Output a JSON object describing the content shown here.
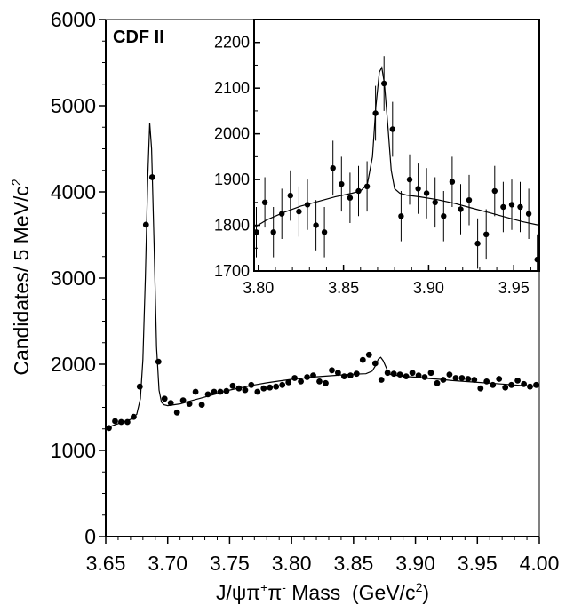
{
  "chart_data": [
    {
      "type": "scatter",
      "role": "main",
      "xlabel_parts": {
        "base": "J/ψπ",
        "sup1": "+",
        "mid": "π",
        "sup2": "-",
        "rest": " Mass  (GeV/c",
        "sup3": "2",
        "end": ")"
      },
      "ylabel_parts": {
        "base": "Candidates/ 5 MeV/c",
        "sup": "2"
      },
      "xlim": [
        3.65,
        4.0
      ],
      "ylim": [
        0,
        6000
      ],
      "x_ticks": [
        "3.65",
        "3.70",
        "3.75",
        "3.80",
        "3.85",
        "3.90",
        "3.95",
        "4.00"
      ],
      "y_ticks": [
        "0",
        "1000",
        "2000",
        "3000",
        "4000",
        "5000",
        "6000"
      ],
      "tag": "CDF II",
      "points": {
        "x": [
          3.6525,
          3.6575,
          3.6625,
          3.6675,
          3.6725,
          3.6775,
          3.6825,
          3.6875,
          3.6925,
          3.6975,
          3.7025,
          3.7075,
          3.7125,
          3.7175,
          3.7225,
          3.7275,
          3.7325,
          3.7375,
          3.7425,
          3.7475,
          3.7525,
          3.7575,
          3.7625,
          3.7675,
          3.7725,
          3.7775,
          3.7825,
          3.7875,
          3.7925,
          3.7975,
          3.8025,
          3.8075,
          3.8125,
          3.8175,
          3.8225,
          3.8275,
          3.8325,
          3.8375,
          3.8425,
          3.8475,
          3.8525,
          3.8575,
          3.8625,
          3.8675,
          3.8725,
          3.8775,
          3.8825,
          3.8875,
          3.8925,
          3.8975,
          3.9025,
          3.9075,
          3.9125,
          3.9175,
          3.9225,
          3.9275,
          3.9325,
          3.9375,
          3.9425,
          3.9475,
          3.9525,
          3.9575,
          3.9625,
          3.9675,
          3.9725,
          3.9775,
          3.9825,
          3.9875,
          3.9925,
          3.9975
        ],
        "y": [
          1260,
          1340,
          1330,
          1330,
          1390,
          1740,
          3620,
          4170,
          2030,
          1600,
          1550,
          1440,
          1580,
          1540,
          1680,
          1530,
          1650,
          1680,
          1680,
          1690,
          1750,
          1720,
          1700,
          1760,
          1680,
          1720,
          1730,
          1740,
          1760,
          1790,
          1840,
          1800,
          1850,
          1870,
          1800,
          1780,
          1930,
          1900,
          1860,
          1870,
          1890,
          2050,
          2110,
          2010,
          1820,
          1900,
          1890,
          1880,
          1860,
          1900,
          1870,
          1850,
          1900,
          1780,
          1820,
          1880,
          1840,
          1840,
          1830,
          1820,
          1720,
          1800,
          1760,
          1830,
          1730,
          1760,
          1810,
          1770,
          1740,
          1760
        ]
      },
      "fit": {
        "x": [
          3.65,
          3.66,
          3.67,
          3.675,
          3.678,
          3.68,
          3.682,
          3.684,
          3.6855,
          3.687,
          3.689,
          3.691,
          3.693,
          3.695,
          3.697,
          3.7,
          3.71,
          3.72,
          3.73,
          3.74,
          3.75,
          3.76,
          3.77,
          3.78,
          3.79,
          3.8,
          3.81,
          3.82,
          3.83,
          3.84,
          3.85,
          3.86,
          3.865,
          3.868,
          3.87,
          3.872,
          3.874,
          3.877,
          3.88,
          3.885,
          3.89,
          3.9,
          3.91,
          3.92,
          3.93,
          3.94,
          3.95,
          3.96,
          3.97,
          3.98,
          3.99,
          4.0
        ],
        "y": [
          1260,
          1310,
          1360,
          1420,
          1600,
          2050,
          3000,
          4200,
          4800,
          4500,
          3400,
          2200,
          1700,
          1560,
          1530,
          1520,
          1540,
          1580,
          1620,
          1660,
          1700,
          1730,
          1760,
          1785,
          1805,
          1825,
          1840,
          1855,
          1865,
          1875,
          1885,
          1890,
          1920,
          1990,
          2060,
          2080,
          2040,
          1940,
          1880,
          1870,
          1860,
          1850,
          1835,
          1825,
          1810,
          1800,
          1790,
          1780,
          1770,
          1760,
          1750,
          1740
        ]
      }
    },
    {
      "type": "scatter",
      "role": "inset",
      "xlim": [
        3.7975,
        3.965
      ],
      "ylim": [
        1700,
        2250
      ],
      "x_ticks": [
        "3.80",
        "3.85",
        "3.90",
        "3.95"
      ],
      "y_ticks": [
        "1700",
        "1800",
        "1900",
        "2000",
        "2100",
        "2200"
      ],
      "points": {
        "x": [
          3.7988,
          3.8038,
          3.8088,
          3.8138,
          3.8188,
          3.8238,
          3.8288,
          3.8338,
          3.8388,
          3.8438,
          3.8488,
          3.8538,
          3.8588,
          3.8638,
          3.8688,
          3.8738,
          3.8788,
          3.8838,
          3.8888,
          3.8938,
          3.8988,
          3.9038,
          3.9088,
          3.9138,
          3.9188,
          3.9238,
          3.9288,
          3.9338,
          3.9388,
          3.9438,
          3.9488,
          3.9538,
          3.9588,
          3.9638
        ],
        "y": [
          1785,
          1850,
          1785,
          1825,
          1865,
          1830,
          1845,
          1800,
          1785,
          1925,
          1890,
          1860,
          1875,
          1885,
          2045,
          2110,
          2010,
          1820,
          1900,
          1880,
          1870,
          1850,
          1820,
          1895,
          1835,
          1855,
          1760,
          1780,
          1875,
          1840,
          1845,
          1840,
          1825,
          1725
        ]
      },
      "errors": [
        55,
        55,
        55,
        55,
        55,
        55,
        55,
        55,
        55,
        60,
        60,
        55,
        55,
        55,
        60,
        60,
        60,
        55,
        55,
        55,
        55,
        55,
        55,
        55,
        55,
        55,
        55,
        55,
        55,
        55,
        55,
        55,
        55,
        55
      ],
      "fit": {
        "x": [
          3.7975,
          3.805,
          3.815,
          3.825,
          3.835,
          3.845,
          3.855,
          3.86,
          3.864,
          3.867,
          3.869,
          3.871,
          3.8725,
          3.874,
          3.876,
          3.878,
          3.88,
          3.883,
          3.887,
          3.895,
          3.905,
          3.915,
          3.925,
          3.935,
          3.945,
          3.955,
          3.965
        ],
        "y": [
          1795,
          1812,
          1828,
          1842,
          1852,
          1862,
          1870,
          1875,
          1890,
          1950,
          2060,
          2135,
          2145,
          2110,
          2020,
          1920,
          1880,
          1870,
          1866,
          1862,
          1856,
          1848,
          1838,
          1828,
          1818,
          1808,
          1800
        ]
      }
    }
  ]
}
